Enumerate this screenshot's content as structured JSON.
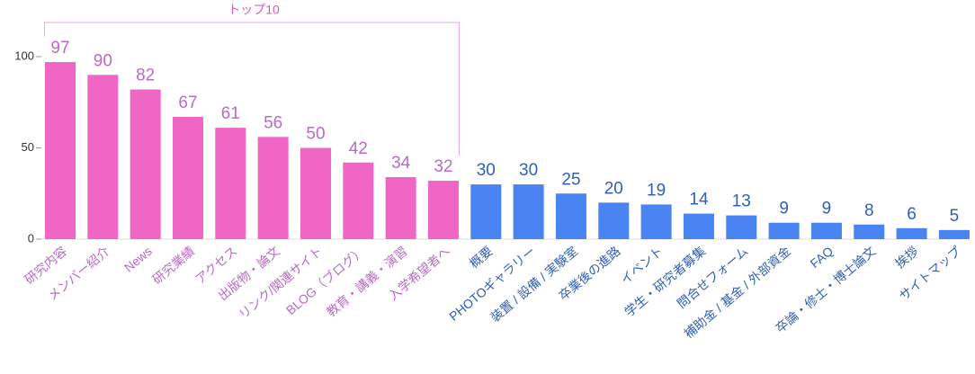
{
  "chart_data": {
    "type": "bar",
    "annotation": "トップ10",
    "categories": [
      "研究内容",
      "メンバー紹介",
      "News",
      "研究業績",
      "アクセス",
      "出版物・論文",
      "リンク/関連サイト",
      "BLOG（ブログ）",
      "教育・講義・演習",
      "入学希望者へ",
      "概要",
      "PHOTOギャラリー",
      "装置 / 設備 / 実験室",
      "卒業後の進路",
      "イベント",
      "学生・研究者募集",
      "問合せフォーム",
      "補助金 / 基金 / 外部資金",
      "FAQ",
      "卒論・修士・博士論文",
      "挨拶",
      "サイトマップ"
    ],
    "values": [
      97,
      90,
      82,
      67,
      61,
      56,
      50,
      42,
      34,
      32,
      30,
      30,
      25,
      20,
      19,
      14,
      13,
      9,
      9,
      8,
      6,
      5
    ],
    "colors": [
      "#f066c4",
      "#f066c4",
      "#f066c4",
      "#f066c4",
      "#f066c4",
      "#f066c4",
      "#f066c4",
      "#f066c4",
      "#f066c4",
      "#f066c4",
      "#4a84f2",
      "#4a84f2",
      "#4a84f2",
      "#4a84f2",
      "#4a84f2",
      "#4a84f2",
      "#4a84f2",
      "#4a84f2",
      "#4a84f2",
      "#4a84f2",
      "#4a84f2",
      "#4a84f2"
    ],
    "ylim": [
      0,
      100
    ],
    "yticks": [
      0,
      50,
      100
    ]
  }
}
